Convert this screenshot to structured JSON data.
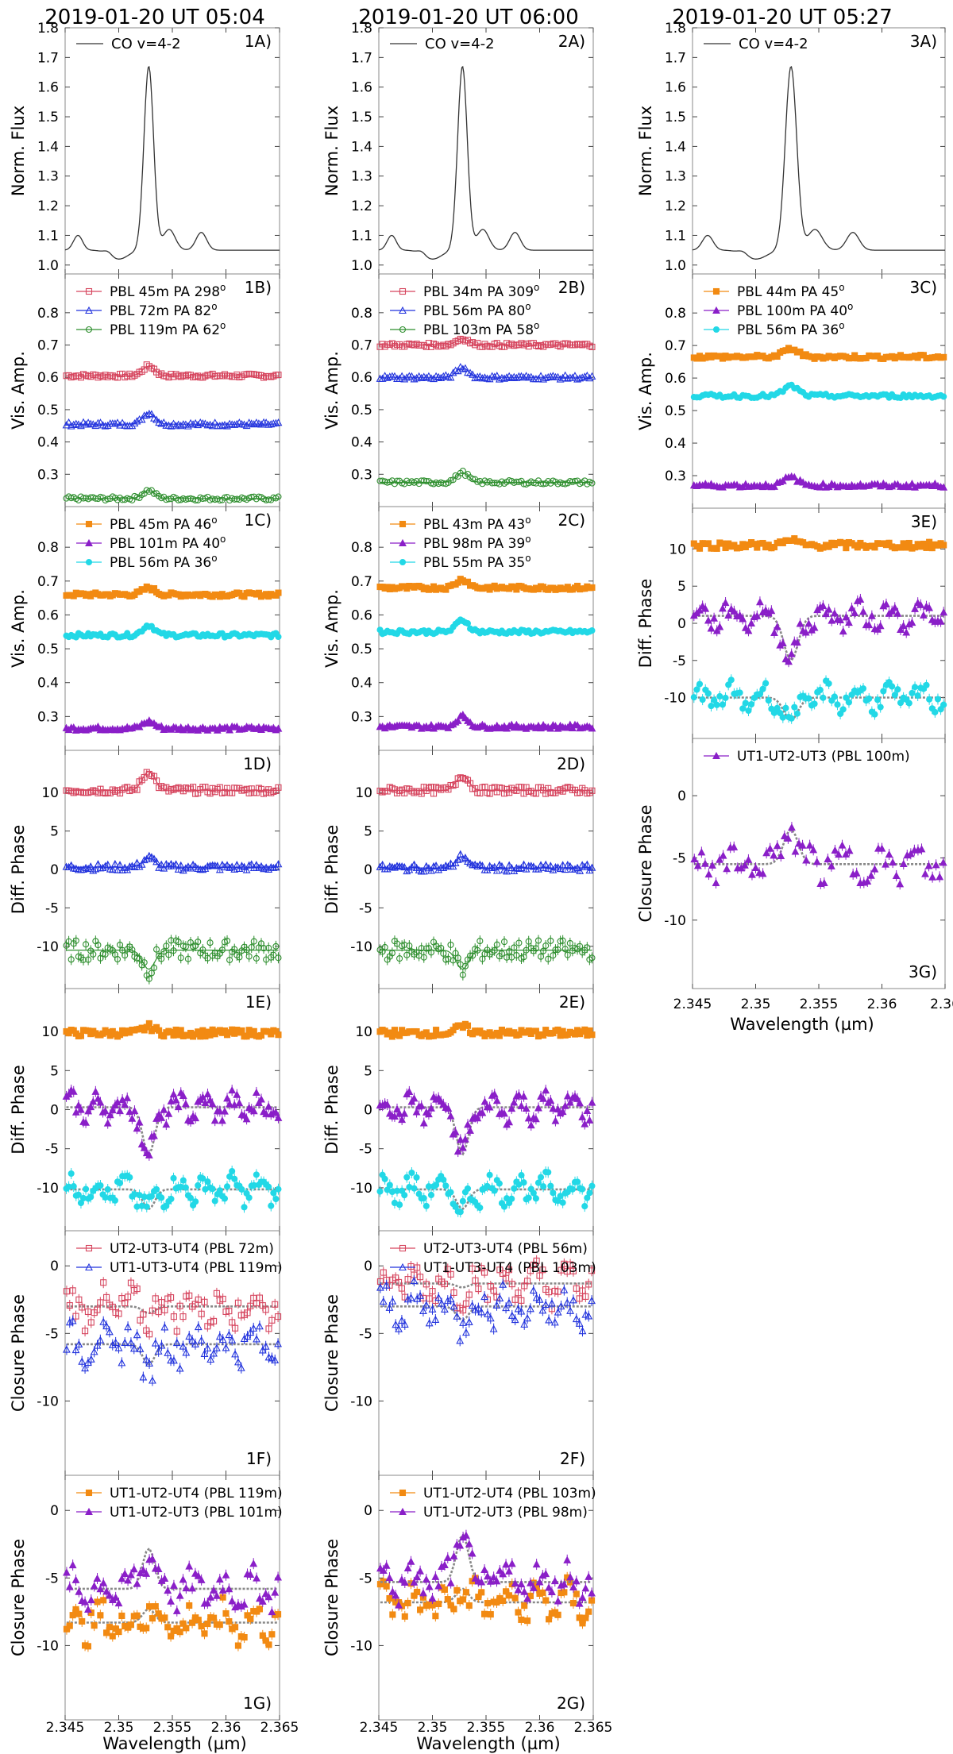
{
  "columns": [
    {
      "id": "1",
      "title": "2019-01-20 UT 05:04"
    },
    {
      "id": "2",
      "title": "2019-01-20 UT 06:00"
    },
    {
      "id": "3",
      "title": "2019-01-20 UT 05:27"
    }
  ],
  "xlabel": "Wavelength (µm)",
  "x_range": [
    2.345,
    2.365
  ],
  "x_ticks": [
    "2.345",
    "2.35",
    "2.355",
    "2.36",
    "2.365"
  ],
  "x_ticks_col3": [
    "2.345",
    "2.35",
    "2.355",
    "2.36",
    "2.36"
  ],
  "colors": {
    "red": "#d6455e",
    "blue": "#2233dd",
    "green": "#2f8f2f",
    "orange": "#f28a12",
    "purple": "#8a1fc8",
    "cyan": "#22d8e6",
    "model": "#888888"
  },
  "chart_data": [
    {
      "id": "1A",
      "type": "line",
      "ylabel": "Norm. Flux",
      "ylim": [
        0.97,
        1.8
      ],
      "yticks": [
        1.0,
        1.1,
        1.2,
        1.3,
        1.4,
        1.5,
        1.6,
        1.7,
        1.8
      ],
      "legend": [
        "CO v=4-2"
      ],
      "profile": "flux"
    },
    {
      "id": "1B",
      "type": "scatter",
      "ylabel": "Vis. Amp.",
      "ylim": [
        0.2,
        0.92
      ],
      "yticks": [
        0.3,
        0.4,
        0.5,
        0.6,
        0.7,
        0.8
      ],
      "series": [
        {
          "name": "PBL 45m PA 298",
          "marker": "square-open",
          "color": "red",
          "base": 0.605,
          "bump": 0.03
        },
        {
          "name": "PBL 72m PA 82",
          "marker": "tri-open",
          "color": "blue",
          "base": 0.455,
          "bump": 0.035
        },
        {
          "name": "PBL 119m PA 62",
          "marker": "circle-open",
          "color": "green",
          "base": 0.225,
          "bump": 0.025
        }
      ]
    },
    {
      "id": "1C",
      "type": "scatter",
      "ylabel": "Vis. Amp.",
      "ylim": [
        0.2,
        0.92
      ],
      "yticks": [
        0.3,
        0.4,
        0.5,
        0.6,
        0.7,
        0.8
      ],
      "series": [
        {
          "name": "PBL 45m PA 46",
          "marker": "square",
          "color": "orange",
          "base": 0.66,
          "bump": 0.02
        },
        {
          "name": "PBL 101m PA 40",
          "marker": "tri",
          "color": "purple",
          "base": 0.265,
          "bump": 0.02
        },
        {
          "name": "PBL 56m PA 36",
          "marker": "circle",
          "color": "cyan",
          "base": 0.54,
          "bump": 0.03
        }
      ]
    },
    {
      "id": "1D",
      "type": "scatter",
      "ylabel": "Diff. Phase",
      "ylim": [
        -15.5,
        15.5
      ],
      "yticks": [
        -10,
        -5,
        0,
        5,
        10
      ],
      "series": [
        {
          "marker": "square-open",
          "color": "red",
          "base": 10.3,
          "bump": 2.5,
          "kind": "dp"
        },
        {
          "marker": "tri-open",
          "color": "blue",
          "base": 0.3,
          "bump": 1.2,
          "kind": "dp"
        },
        {
          "marker": "circle-open",
          "color": "green",
          "base": -10.5,
          "bump": -2.5,
          "kind": "dpn"
        }
      ]
    },
    {
      "id": "1E",
      "type": "scatter",
      "ylabel": "Diff. Phase",
      "ylim": [
        -15.5,
        15.5
      ],
      "yticks": [
        -10,
        -5,
        0,
        5,
        10
      ],
      "series": [
        {
          "marker": "square",
          "color": "orange",
          "base": 9.8,
          "bump": 0.8,
          "kind": "dp"
        },
        {
          "marker": "tri",
          "color": "purple",
          "base": 0.3,
          "bump": -6,
          "kind": "dpv"
        },
        {
          "marker": "circle",
          "color": "cyan",
          "base": -10.2,
          "bump": -2.5,
          "kind": "dpv"
        }
      ]
    },
    {
      "id": "1F",
      "type": "scatter",
      "ylabel": "Closure Phase",
      "ylim": [
        -15.5,
        2.6
      ],
      "yticks": [
        -10,
        -5,
        0
      ],
      "series": [
        {
          "name": "UT2-UT3-UT4 (PBL 72m)",
          "marker": "square-open",
          "color": "red",
          "base": -3.0,
          "bump": -0.5,
          "kind": "cp"
        },
        {
          "name": "UT1-UT3-UT4 (PBL 119m)",
          "marker": "tri-open",
          "color": "blue",
          "base": -5.8,
          "bump": -1.5,
          "kind": "cp"
        }
      ]
    },
    {
      "id": "1G",
      "type": "scatter",
      "ylabel": "Closure Phase",
      "ylim": [
        -15.5,
        2.6
      ],
      "yticks": [
        -10,
        -5,
        0
      ],
      "series": [
        {
          "name": "UT1-UT2-UT4 (PBL 119m)",
          "marker": "square",
          "color": "orange",
          "base": -8.3,
          "bump": 1.0,
          "kind": "cp"
        },
        {
          "name": "UT1-UT2-UT3 (PBL 101m)",
          "marker": "tri",
          "color": "purple",
          "base": -5.8,
          "bump": 3.0,
          "kind": "cp"
        }
      ]
    },
    {
      "id": "2A",
      "type": "line",
      "ylabel": "Norm. Flux",
      "ylim": [
        0.97,
        1.8
      ],
      "yticks": [
        1.0,
        1.1,
        1.2,
        1.3,
        1.4,
        1.5,
        1.6,
        1.7,
        1.8
      ],
      "legend": [
        "CO v=4-2"
      ],
      "profile": "flux"
    },
    {
      "id": "2B",
      "type": "scatter",
      "ylabel": "Vis. Amp.",
      "ylim": [
        0.2,
        0.92
      ],
      "yticks": [
        0.3,
        0.4,
        0.5,
        0.6,
        0.7,
        0.8
      ],
      "series": [
        {
          "name": "PBL 34m PA 309",
          "marker": "square-open",
          "color": "red",
          "base": 0.7,
          "bump": 0.02
        },
        {
          "name": "PBL 56m PA 80",
          "marker": "tri-open",
          "color": "blue",
          "base": 0.6,
          "bump": 0.03
        },
        {
          "name": "PBL 103m PA 58",
          "marker": "circle-open",
          "color": "green",
          "base": 0.275,
          "bump": 0.03
        }
      ]
    },
    {
      "id": "2C",
      "type": "scatter",
      "ylabel": "Vis. Amp.",
      "ylim": [
        0.2,
        0.92
      ],
      "yticks": [
        0.3,
        0.4,
        0.5,
        0.6,
        0.7,
        0.8
      ],
      "series": [
        {
          "name": "PBL 43m PA 43",
          "marker": "square",
          "color": "orange",
          "base": 0.68,
          "bump": 0.025
        },
        {
          "name": "PBL 98m PA 39",
          "marker": "tri",
          "color": "purple",
          "base": 0.27,
          "bump": 0.03
        },
        {
          "name": "PBL 55m PA 35",
          "marker": "circle",
          "color": "cyan",
          "base": 0.55,
          "bump": 0.035
        }
      ]
    },
    {
      "id": "2D",
      "type": "scatter",
      "ylabel": "Diff. Phase",
      "ylim": [
        -15.5,
        15.5
      ],
      "yticks": [
        -10,
        -5,
        0,
        5,
        10
      ],
      "series": [
        {
          "marker": "square-open",
          "color": "red",
          "base": 10.3,
          "bump": 2.0,
          "kind": "dp"
        },
        {
          "marker": "tri-open",
          "color": "blue",
          "base": 0.2,
          "bump": 1.5,
          "kind": "dp"
        },
        {
          "marker": "circle-open",
          "color": "green",
          "base": -10.5,
          "bump": -2.5,
          "kind": "dpn"
        }
      ]
    },
    {
      "id": "2E",
      "type": "scatter",
      "ylabel": "Diff. Phase",
      "ylim": [
        -15.5,
        15.5
      ],
      "yticks": [
        -10,
        -5,
        0,
        5,
        10
      ],
      "series": [
        {
          "marker": "square",
          "color": "orange",
          "base": 9.8,
          "bump": 0.8,
          "kind": "dp"
        },
        {
          "marker": "tri",
          "color": "purple",
          "base": 0.3,
          "bump": -6,
          "kind": "dpv"
        },
        {
          "marker": "circle",
          "color": "cyan",
          "base": -10.2,
          "bump": -2.5,
          "kind": "dpv"
        }
      ]
    },
    {
      "id": "2F",
      "type": "scatter",
      "ylabel": "Closure Phase",
      "ylim": [
        -15.5,
        2.6
      ],
      "yticks": [
        -10,
        -5,
        0
      ],
      "series": [
        {
          "name": "UT2-UT3-UT4 (PBL 56m)",
          "marker": "square-open",
          "color": "red",
          "base": -1.3,
          "bump": -0.3,
          "kind": "cp"
        },
        {
          "name": "UT1-UT3-UT4 (PBL 103m)",
          "marker": "tri-open",
          "color": "blue",
          "base": -3.0,
          "bump": -1.0,
          "kind": "cp"
        }
      ]
    },
    {
      "id": "2G",
      "type": "scatter",
      "ylabel": "Closure Phase",
      "ylim": [
        -15.5,
        2.6
      ],
      "yticks": [
        -10,
        -5,
        0
      ],
      "series": [
        {
          "name": "UT1-UT2-UT4 (PBL 103m)",
          "marker": "square",
          "color": "orange",
          "base": -6.8,
          "bump": 1.0,
          "kind": "cp"
        },
        {
          "name": "UT1-UT2-UT3 (PBL 98m)",
          "marker": "tri",
          "color": "purple",
          "base": -5.3,
          "bump": 3.5,
          "kind": "cp"
        }
      ]
    },
    {
      "id": "3A",
      "type": "line",
      "ylabel": "Norm. Flux",
      "ylim": [
        0.97,
        1.8
      ],
      "yticks": [
        1.0,
        1.1,
        1.2,
        1.3,
        1.4,
        1.5,
        1.6,
        1.7,
        1.8
      ],
      "legend": [
        "CO v=4-2"
      ],
      "profile": "flux"
    },
    {
      "id": "3C",
      "type": "scatter",
      "ylabel": "Vis. Amp.",
      "ylim": [
        0.2,
        0.92
      ],
      "yticks": [
        0.3,
        0.4,
        0.5,
        0.6,
        0.7,
        0.8
      ],
      "series": [
        {
          "name": "PBL 44m PA 45",
          "marker": "square",
          "color": "orange",
          "base": 0.665,
          "bump": 0.025
        },
        {
          "name": "PBL 100m PA 40",
          "marker": "tri",
          "color": "purple",
          "base": 0.27,
          "bump": 0.025
        },
        {
          "name": "PBL 56m PA 36",
          "marker": "circle",
          "color": "cyan",
          "base": 0.545,
          "bump": 0.03
        }
      ]
    },
    {
      "id": "3E",
      "type": "scatter",
      "ylabel": "Diff. Phase",
      "ylim": [
        -15.5,
        15.5
      ],
      "yticks": [
        -10,
        -5,
        0,
        5,
        10
      ],
      "series": [
        {
          "marker": "square",
          "color": "orange",
          "base": 10.5,
          "bump": 0.6,
          "kind": "dp"
        },
        {
          "marker": "tri",
          "color": "purple",
          "base": 1.0,
          "bump": -6,
          "kind": "dpv"
        },
        {
          "marker": "circle",
          "color": "cyan",
          "base": -10.0,
          "bump": -3.0,
          "kind": "dpv"
        }
      ]
    },
    {
      "id": "3G",
      "type": "scatter",
      "ylabel": "Closure Phase",
      "ylim": [
        -15.5,
        4.6
      ],
      "yticks": [
        -10,
        -5,
        0
      ],
      "series": [
        {
          "name": "UT1-UT2-UT3 (PBL 100m)",
          "marker": "tri",
          "color": "purple",
          "base": -5.5,
          "bump": 2.8,
          "kind": "cp"
        }
      ]
    }
  ]
}
